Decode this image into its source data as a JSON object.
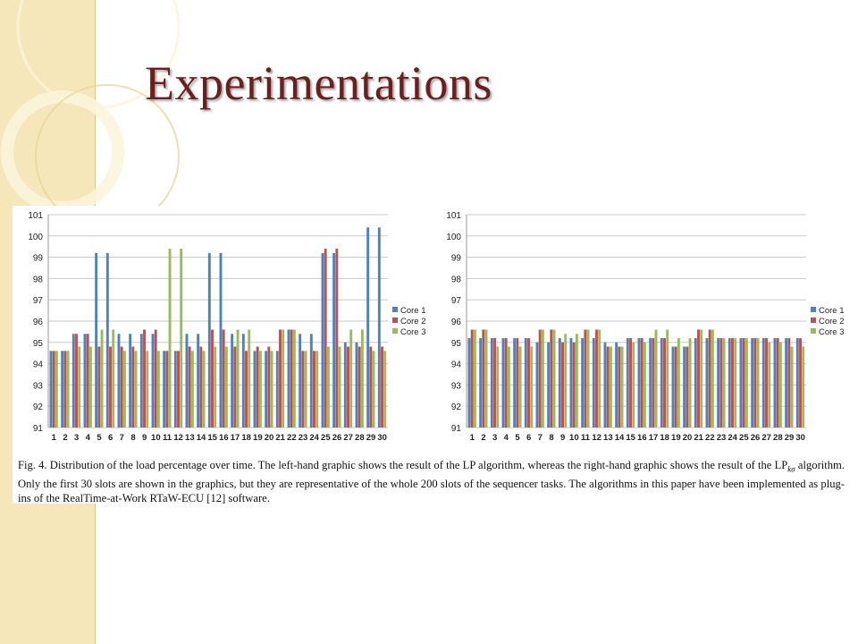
{
  "slide": {
    "title": "Experimentations"
  },
  "colors": {
    "sidebar": "#f6e7bb",
    "title": "#6b1f1f",
    "core1": "#4f81bd",
    "core2": "#c0504d",
    "core3": "#9bbb59"
  },
  "figure": {
    "caption_pre": "Fig. 4.    Distribution of the load percentage over time. The left-hand graphic shows the result of the LP algorithm, whereas the right-hand graphic shows the result of the LP",
    "caption_sub": "kσ",
    "caption_post": " algorithm. Only the first 30 slots are shown in the graphics, but they are representative of the whole 200 slots of the sequencer tasks. The algorithms in this paper have been implemented as plug-ins of the RealTime-at-Work RTaW-ECU [12] software."
  },
  "chart_data": [
    {
      "type": "bar",
      "categories": [
        "1",
        "2",
        "3",
        "4",
        "5",
        "6",
        "7",
        "8",
        "9",
        "10",
        "11",
        "12",
        "13",
        "14",
        "15",
        "16",
        "17",
        "18",
        "19",
        "20",
        "21",
        "22",
        "23",
        "24",
        "25",
        "26",
        "27",
        "28",
        "29",
        "30"
      ],
      "ylim": [
        91,
        101
      ],
      "yticks": [
        91,
        92,
        93,
        94,
        95,
        96,
        97,
        98,
        99,
        100,
        101
      ],
      "grid": true,
      "legend": "right",
      "series": [
        {
          "name": "Core 1",
          "values": [
            94.6,
            94.6,
            95.4,
            95.4,
            99.2,
            99.2,
            95.4,
            95.4,
            95.4,
            95.4,
            94.6,
            94.6,
            95.4,
            95.4,
            99.2,
            99.2,
            95.4,
            95.4,
            94.6,
            94.6,
            94.6,
            95.6,
            95.4,
            95.4,
            99.2,
            99.2,
            95.0,
            95.0,
            100.4,
            100.4
          ]
        },
        {
          "name": "Core 2",
          "values": [
            94.6,
            94.6,
            95.4,
            95.4,
            94.8,
            94.8,
            94.8,
            94.8,
            95.6,
            95.6,
            94.6,
            94.6,
            94.8,
            94.8,
            95.6,
            95.6,
            94.8,
            94.6,
            94.8,
            94.8,
            95.6,
            95.6,
            94.6,
            94.6,
            99.4,
            99.4,
            94.8,
            94.8,
            94.8,
            94.8
          ]
        },
        {
          "name": "Core 3",
          "values": [
            94.6,
            94.6,
            94.8,
            94.8,
            95.6,
            95.6,
            94.6,
            94.6,
            94.6,
            94.6,
            99.4,
            99.4,
            94.6,
            94.6,
            94.8,
            94.8,
            95.6,
            95.6,
            94.6,
            94.6,
            95.6,
            95.6,
            94.6,
            94.6,
            94.8,
            94.8,
            95.6,
            95.6,
            94.6,
            94.6
          ]
        }
      ]
    },
    {
      "type": "bar",
      "categories": [
        "1",
        "2",
        "3",
        "4",
        "5",
        "6",
        "7",
        "8",
        "9",
        "10",
        "11",
        "12",
        "13",
        "14",
        "15",
        "16",
        "17",
        "18",
        "19",
        "20",
        "21",
        "22",
        "23",
        "24",
        "25",
        "26",
        "27",
        "28",
        "29",
        "30"
      ],
      "ylim": [
        91,
        101
      ],
      "yticks": [
        91,
        92,
        93,
        94,
        95,
        96,
        97,
        98,
        99,
        100,
        101
      ],
      "grid": true,
      "legend": "right",
      "series": [
        {
          "name": "Core 1",
          "values": [
            95.2,
            95.2,
            95.2,
            95.2,
            95.2,
            95.2,
            95.0,
            95.0,
            95.2,
            95.2,
            95.2,
            95.2,
            95.0,
            95.0,
            95.2,
            95.2,
            95.2,
            95.2,
            94.8,
            94.8,
            95.2,
            95.2,
            95.2,
            95.2,
            95.2,
            95.2,
            95.2,
            95.2,
            95.2,
            95.2
          ]
        },
        {
          "name": "Core 2",
          "values": [
            95.6,
            95.6,
            95.2,
            95.2,
            95.2,
            95.2,
            95.6,
            95.6,
            95.0,
            95.0,
            95.6,
            95.6,
            94.8,
            94.8,
            95.2,
            95.2,
            95.2,
            95.2,
            94.8,
            94.8,
            95.6,
            95.6,
            95.2,
            95.2,
            95.2,
            95.2,
            95.2,
            95.2,
            95.2,
            95.2
          ]
        },
        {
          "name": "Core 3",
          "values": [
            95.6,
            95.6,
            94.8,
            94.8,
            94.8,
            94.8,
            95.6,
            95.6,
            95.4,
            95.4,
            95.6,
            95.6,
            94.8,
            94.8,
            95.0,
            95.0,
            95.6,
            95.6,
            95.2,
            95.2,
            95.6,
            95.6,
            95.2,
            95.2,
            95.2,
            95.2,
            95.0,
            95.0,
            94.8,
            94.8
          ]
        }
      ]
    }
  ]
}
